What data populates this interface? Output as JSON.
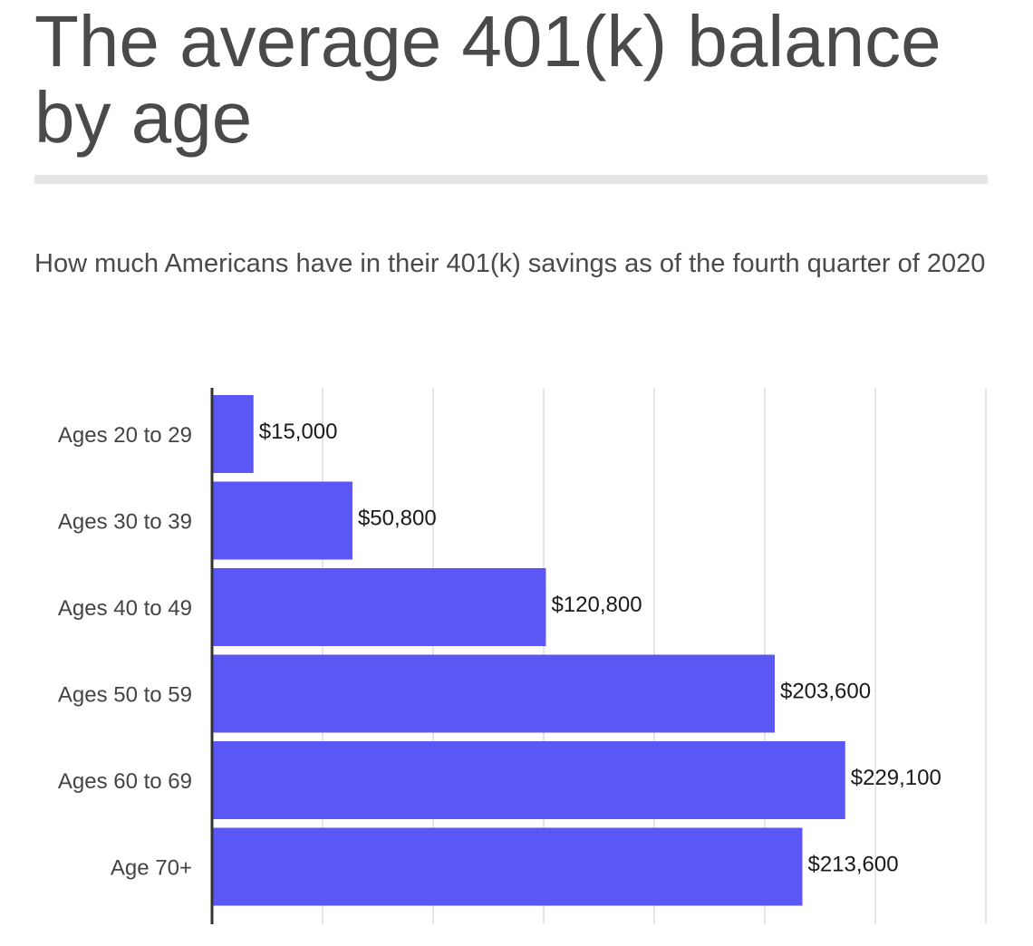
{
  "title": "The average 401(k) balance by age",
  "subtitle": "How much Americans have in their 401(k) savings as of the fourth quarter of 2020",
  "colors": {
    "bar": "#5b57f5",
    "title_text": "#4a4a4a",
    "gridline": "#dddddd",
    "axis": "#333333"
  },
  "chart_data": {
    "type": "bar",
    "orientation": "horizontal",
    "categories": [
      "Ages 20 to 29",
      "Ages 30 to 39",
      "Ages 40 to 49",
      "Ages 50 to 59",
      "Ages 60 to 69",
      "Age 70+"
    ],
    "values": [
      15000,
      50800,
      120800,
      203600,
      229100,
      213600
    ],
    "value_labels": [
      "$15,000",
      "$50,800",
      "$120,800",
      "$203,600",
      "$229,100",
      "$213,600"
    ],
    "xlim": [
      0,
      280000
    ],
    "grid_step": 40000,
    "grid": true,
    "legend": "none"
  }
}
